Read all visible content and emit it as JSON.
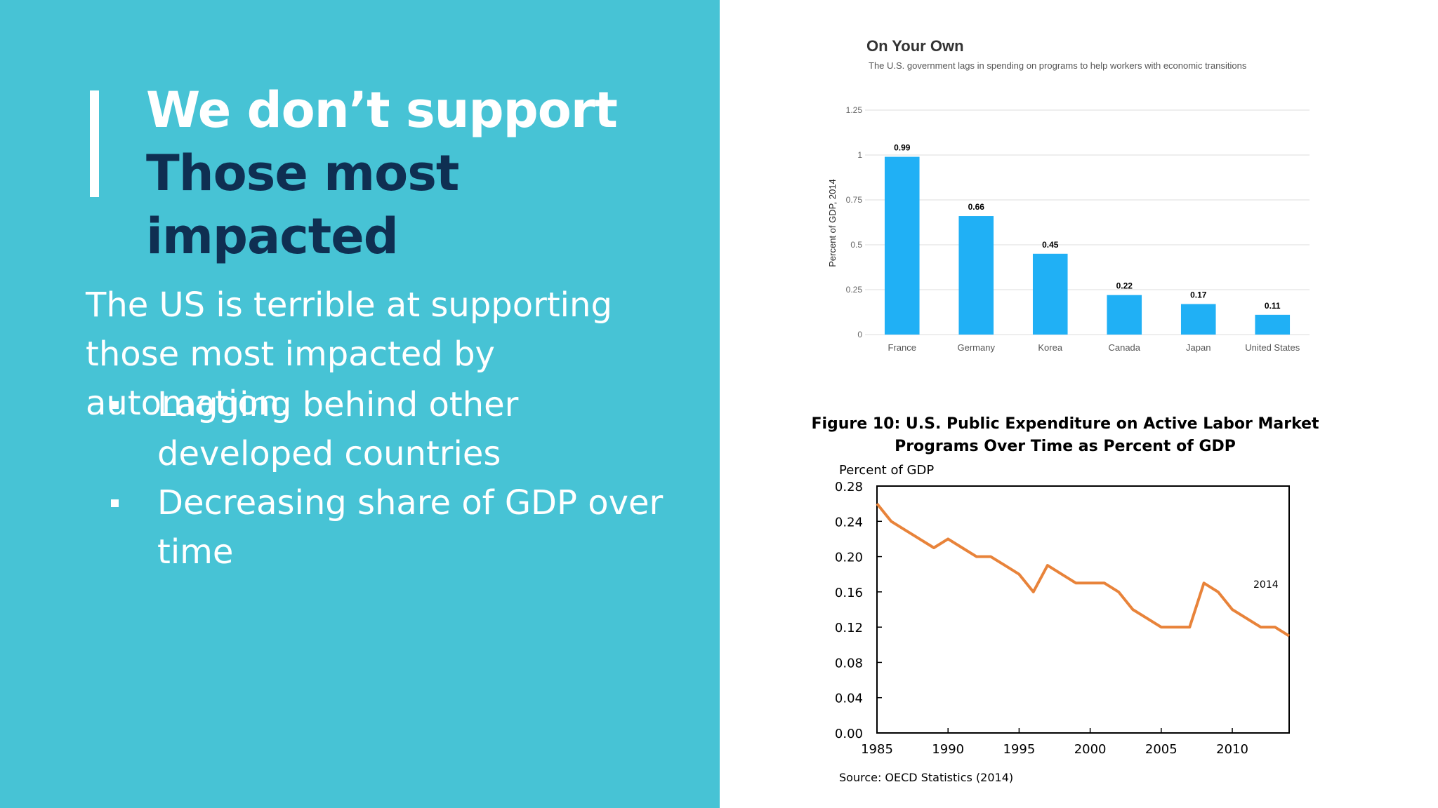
{
  "slide": {
    "title_line1": "We don’t support",
    "title_line2": "Those most impacted",
    "body": "The US is terrible at supporting those most impacted by automation.",
    "bullets": [
      "Lagging behind other developed countries",
      "Decreasing share of GDP over time"
    ],
    "colors": {
      "panel": "#47c3d5",
      "title_dark": "#0f2f52",
      "bar": "#20b0f5",
      "line": "#e8833a"
    }
  },
  "chart_data": [
    {
      "type": "bar",
      "title": "On Your Own",
      "subtitle": "The U.S. government lags in spending on programs to help workers with economic transitions",
      "xlabel": "",
      "ylabel": "Percent of GDP, 2014",
      "categories": [
        "France",
        "Germany",
        "Korea",
        "Canada",
        "Japan",
        "United States"
      ],
      "values": [
        0.99,
        0.66,
        0.45,
        0.22,
        0.17,
        0.11
      ],
      "data_labels": [
        "0.99",
        "0.66",
        "0.45",
        "0.22",
        "0.17",
        "0.11"
      ],
      "ylim": [
        0,
        1.25
      ],
      "yticks": [
        0,
        0.25,
        0.5,
        0.75,
        1,
        1.25
      ],
      "ytick_labels": [
        "0",
        "0.25",
        "0.5",
        "0.75",
        "1",
        "1.25"
      ],
      "grid": true,
      "color": "#20b0f5"
    },
    {
      "type": "line",
      "title": "Figure 10: U.S. Public Expenditure on Active Labor Market Programs Over Time as Percent of GDP",
      "ylabel": "Percent of GDP",
      "xlabel": "",
      "x": [
        1985,
        1986,
        1987,
        1988,
        1989,
        1990,
        1991,
        1992,
        1993,
        1994,
        1995,
        1996,
        1997,
        1998,
        1999,
        2000,
        2001,
        2002,
        2003,
        2004,
        2005,
        2006,
        2007,
        2008,
        2009,
        2010,
        2011,
        2012,
        2013,
        2014
      ],
      "values": [
        0.26,
        0.24,
        0.23,
        0.22,
        0.21,
        0.22,
        0.21,
        0.2,
        0.2,
        0.19,
        0.18,
        0.16,
        0.19,
        0.18,
        0.17,
        0.17,
        0.17,
        0.16,
        0.14,
        0.13,
        0.12,
        0.12,
        0.12,
        0.17,
        0.16,
        0.14,
        0.13,
        0.12,
        0.12,
        0.11
      ],
      "xlim": [
        1985,
        2014
      ],
      "ylim": [
        0,
        0.28
      ],
      "xticks": [
        1985,
        1990,
        1995,
        2000,
        2005,
        2010
      ],
      "xtick_labels": [
        "1985",
        "1990",
        "1995",
        "2000",
        "2005",
        "2010"
      ],
      "yticks": [
        0,
        0.04,
        0.08,
        0.12,
        0.16,
        0.2,
        0.24,
        0.28
      ],
      "ytick_labels": [
        "0.00",
        "0.04",
        "0.08",
        "0.12",
        "0.16",
        "0.20",
        "0.24",
        "0.28"
      ],
      "annotation": "2014",
      "source": "Source: OECD Statistics (2014)",
      "grid": false,
      "color": "#e8833a"
    }
  ]
}
